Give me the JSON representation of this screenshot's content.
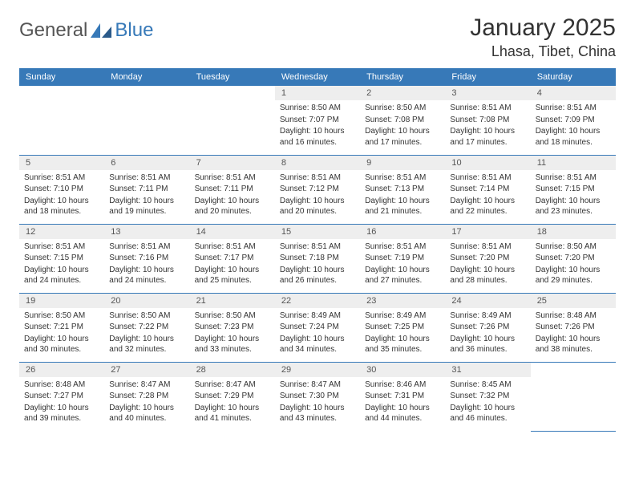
{
  "logo": {
    "word1": "General",
    "word2": "Blue",
    "accent": "#3779b8",
    "textColor": "#555"
  },
  "title": "January 2025",
  "location": "Lhasa, Tibet, China",
  "headerBg": "#3779b8",
  "headerFg": "#ffffff",
  "dayBarBg": "#eeeeee",
  "borderColor": "#3779b8",
  "weekdays": [
    "Sunday",
    "Monday",
    "Tuesday",
    "Wednesday",
    "Thursday",
    "Friday",
    "Saturday"
  ],
  "weeks": [
    [
      null,
      null,
      null,
      {
        "n": "1",
        "sr": "8:50 AM",
        "ss": "7:07 PM",
        "dl": "10 hours and 16 minutes."
      },
      {
        "n": "2",
        "sr": "8:50 AM",
        "ss": "7:08 PM",
        "dl": "10 hours and 17 minutes."
      },
      {
        "n": "3",
        "sr": "8:51 AM",
        "ss": "7:08 PM",
        "dl": "10 hours and 17 minutes."
      },
      {
        "n": "4",
        "sr": "8:51 AM",
        "ss": "7:09 PM",
        "dl": "10 hours and 18 minutes."
      }
    ],
    [
      {
        "n": "5",
        "sr": "8:51 AM",
        "ss": "7:10 PM",
        "dl": "10 hours and 18 minutes."
      },
      {
        "n": "6",
        "sr": "8:51 AM",
        "ss": "7:11 PM",
        "dl": "10 hours and 19 minutes."
      },
      {
        "n": "7",
        "sr": "8:51 AM",
        "ss": "7:11 PM",
        "dl": "10 hours and 20 minutes."
      },
      {
        "n": "8",
        "sr": "8:51 AM",
        "ss": "7:12 PM",
        "dl": "10 hours and 20 minutes."
      },
      {
        "n": "9",
        "sr": "8:51 AM",
        "ss": "7:13 PM",
        "dl": "10 hours and 21 minutes."
      },
      {
        "n": "10",
        "sr": "8:51 AM",
        "ss": "7:14 PM",
        "dl": "10 hours and 22 minutes."
      },
      {
        "n": "11",
        "sr": "8:51 AM",
        "ss": "7:15 PM",
        "dl": "10 hours and 23 minutes."
      }
    ],
    [
      {
        "n": "12",
        "sr": "8:51 AM",
        "ss": "7:15 PM",
        "dl": "10 hours and 24 minutes."
      },
      {
        "n": "13",
        "sr": "8:51 AM",
        "ss": "7:16 PM",
        "dl": "10 hours and 24 minutes."
      },
      {
        "n": "14",
        "sr": "8:51 AM",
        "ss": "7:17 PM",
        "dl": "10 hours and 25 minutes."
      },
      {
        "n": "15",
        "sr": "8:51 AM",
        "ss": "7:18 PM",
        "dl": "10 hours and 26 minutes."
      },
      {
        "n": "16",
        "sr": "8:51 AM",
        "ss": "7:19 PM",
        "dl": "10 hours and 27 minutes."
      },
      {
        "n": "17",
        "sr": "8:51 AM",
        "ss": "7:20 PM",
        "dl": "10 hours and 28 minutes."
      },
      {
        "n": "18",
        "sr": "8:50 AM",
        "ss": "7:20 PM",
        "dl": "10 hours and 29 minutes."
      }
    ],
    [
      {
        "n": "19",
        "sr": "8:50 AM",
        "ss": "7:21 PM",
        "dl": "10 hours and 30 minutes."
      },
      {
        "n": "20",
        "sr": "8:50 AM",
        "ss": "7:22 PM",
        "dl": "10 hours and 32 minutes."
      },
      {
        "n": "21",
        "sr": "8:50 AM",
        "ss": "7:23 PM",
        "dl": "10 hours and 33 minutes."
      },
      {
        "n": "22",
        "sr": "8:49 AM",
        "ss": "7:24 PM",
        "dl": "10 hours and 34 minutes."
      },
      {
        "n": "23",
        "sr": "8:49 AM",
        "ss": "7:25 PM",
        "dl": "10 hours and 35 minutes."
      },
      {
        "n": "24",
        "sr": "8:49 AM",
        "ss": "7:26 PM",
        "dl": "10 hours and 36 minutes."
      },
      {
        "n": "25",
        "sr": "8:48 AM",
        "ss": "7:26 PM",
        "dl": "10 hours and 38 minutes."
      }
    ],
    [
      {
        "n": "26",
        "sr": "8:48 AM",
        "ss": "7:27 PM",
        "dl": "10 hours and 39 minutes."
      },
      {
        "n": "27",
        "sr": "8:47 AM",
        "ss": "7:28 PM",
        "dl": "10 hours and 40 minutes."
      },
      {
        "n": "28",
        "sr": "8:47 AM",
        "ss": "7:29 PM",
        "dl": "10 hours and 41 minutes."
      },
      {
        "n": "29",
        "sr": "8:47 AM",
        "ss": "7:30 PM",
        "dl": "10 hours and 43 minutes."
      },
      {
        "n": "30",
        "sr": "8:46 AM",
        "ss": "7:31 PM",
        "dl": "10 hours and 44 minutes."
      },
      {
        "n": "31",
        "sr": "8:45 AM",
        "ss": "7:32 PM",
        "dl": "10 hours and 46 minutes."
      },
      null
    ]
  ],
  "labels": {
    "sunrise": "Sunrise:",
    "sunset": "Sunset:",
    "daylight": "Daylight:"
  }
}
